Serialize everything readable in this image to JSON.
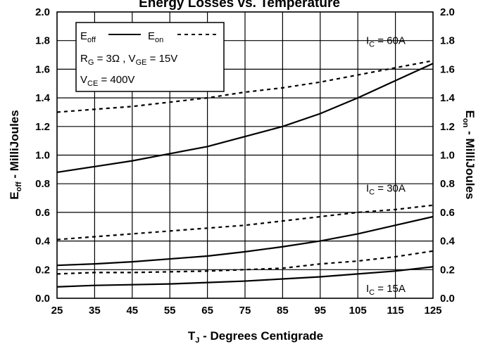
{
  "chart_data": {
    "type": "line",
    "title": "Energy Losses vs. Temperature",
    "xlabel": "T",
    "xlabel_sub": "J",
    "xlabel_rest": " - Degrees Centigrade",
    "ylabel_left": "E",
    "ylabel_left_sub": "off",
    "ylabel_left_rest": " - MilliJoules",
    "ylabel_right": "E",
    "ylabel_right_sub": "on",
    "ylabel_right_rest": " - MilliJoules",
    "xlim": [
      25,
      125
    ],
    "ylim": [
      0.0,
      2.0
    ],
    "x_ticks": [
      "25",
      "35",
      "45",
      "55",
      "65",
      "75",
      "85",
      "95",
      "105",
      "115",
      "125"
    ],
    "y_ticks": [
      "0.0",
      "0.2",
      "0.4",
      "0.6",
      "0.8",
      "1.0",
      "1.2",
      "1.4",
      "1.6",
      "1.8",
      "2.0"
    ],
    "grid": true,
    "series": [
      {
        "group": "IC = 60A",
        "style": "solid",
        "x": [
          25,
          35,
          45,
          55,
          65,
          75,
          85,
          95,
          105,
          115,
          125
        ],
        "y": [
          0.88,
          0.92,
          0.96,
          1.01,
          1.06,
          1.13,
          1.2,
          1.29,
          1.4,
          1.52,
          1.64
        ]
      },
      {
        "group": "IC = 60A",
        "style": "dashed",
        "x": [
          25,
          35,
          45,
          55,
          65,
          75,
          85,
          95,
          105,
          115,
          125
        ],
        "y": [
          1.3,
          1.32,
          1.34,
          1.37,
          1.4,
          1.44,
          1.47,
          1.51,
          1.56,
          1.61,
          1.66
        ]
      },
      {
        "group": "IC = 30A",
        "style": "solid",
        "x": [
          25,
          35,
          45,
          55,
          65,
          75,
          85,
          95,
          105,
          115,
          125
        ],
        "y": [
          0.23,
          0.24,
          0.255,
          0.275,
          0.295,
          0.325,
          0.36,
          0.4,
          0.45,
          0.51,
          0.57
        ]
      },
      {
        "group": "IC = 30A",
        "style": "dashed",
        "x": [
          25,
          35,
          45,
          55,
          65,
          75,
          85,
          95,
          105,
          115,
          125
        ],
        "y": [
          0.41,
          0.43,
          0.45,
          0.47,
          0.49,
          0.51,
          0.54,
          0.57,
          0.6,
          0.62,
          0.65
        ]
      },
      {
        "group": "IC = 15A",
        "style": "solid",
        "x": [
          25,
          35,
          45,
          55,
          65,
          75,
          85,
          95,
          105,
          115,
          125
        ],
        "y": [
          0.08,
          0.09,
          0.095,
          0.1,
          0.11,
          0.12,
          0.135,
          0.15,
          0.17,
          0.19,
          0.22
        ]
      },
      {
        "group": "IC = 15A",
        "style": "dashed",
        "x": [
          25,
          35,
          45,
          55,
          65,
          75,
          85,
          95,
          105,
          115,
          125
        ],
        "y": [
          0.17,
          0.18,
          0.18,
          0.185,
          0.19,
          0.2,
          0.21,
          0.24,
          0.26,
          0.29,
          0.33
        ]
      }
    ],
    "legend": {
      "eoff": "E",
      "eoff_sub": "off",
      "eon": "E",
      "eon_sub": "on",
      "line2": "R",
      "line2_sub": "G",
      "line2_rest": " = 3Ω ,  V",
      "line2_sub2": "GE",
      "line2_rest2": " = 15V",
      "line3": "V",
      "line3_sub": "CE",
      "line3_rest": " = 400V",
      "placement": "top-left"
    },
    "curve_labels": [
      {
        "main": "I",
        "sub": "C",
        "rest": " = 60A",
        "y": 1.8
      },
      {
        "main": "I",
        "sub": "C",
        "rest": " = 30A",
        "y": 0.77
      },
      {
        "main": "I",
        "sub": "C",
        "rest": " = 15A",
        "y": 0.07
      }
    ]
  }
}
